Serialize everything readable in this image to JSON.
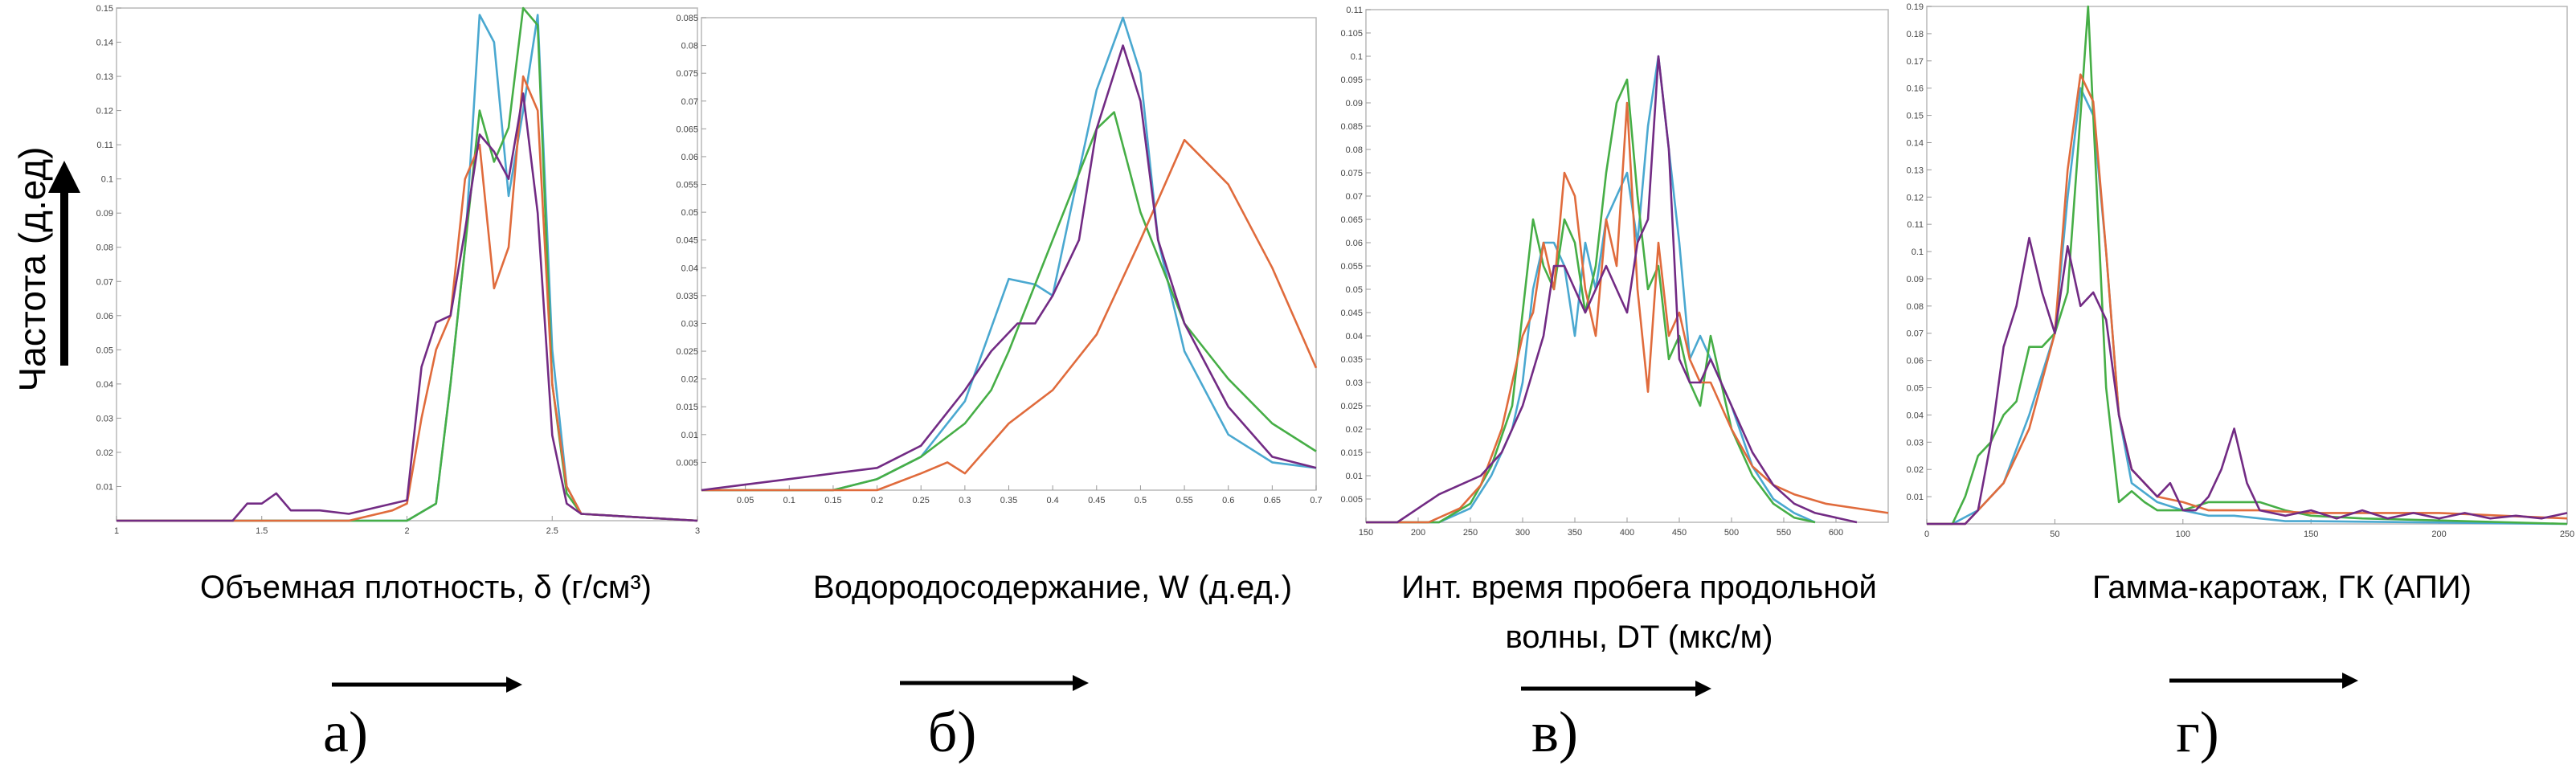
{
  "figure": {
    "ylabel": "Частота (д.ед)",
    "colors": {
      "Синяя": "#4aa8d0",
      "Зелёная": "#46ae46",
      "Красная": "#e06b3c",
      "Фиолетовая": "#722b84"
    }
  },
  "chart_data": [
    {
      "type": "line",
      "xlabel": "Объемная плотность, δ (г/см³)",
      "panel_label": "а)",
      "xlim": [
        1,
        3
      ],
      "ylim": [
        0,
        0.15
      ],
      "xticks": [
        "1",
        "1.5",
        "2",
        "2.5",
        "3"
      ],
      "xtick_values": [
        1,
        1.5,
        2,
        2.5,
        3
      ],
      "yticks": [
        "0.01",
        "0.02",
        "0.03",
        "0.04",
        "0.05",
        "0.06",
        "0.07",
        "0.08",
        "0.09",
        "0.1",
        "0.11",
        "0.12",
        "0.13",
        "0.14",
        "0.15"
      ],
      "ytick_values": [
        0.01,
        0.02,
        0.03,
        0.04,
        0.05,
        0.06,
        0.07,
        0.08,
        0.09,
        0.1,
        0.11,
        0.12,
        0.13,
        0.14,
        0.15
      ],
      "series": [
        {
          "color": "#4aa8d0",
          "x": [
            1,
            2,
            2.1,
            2.15,
            2.2,
            2.25,
            2.3,
            2.35,
            2.4,
            2.45,
            2.5,
            2.55,
            2.6,
            3
          ],
          "y": [
            0,
            0,
            0.005,
            0.04,
            0.08,
            0.148,
            0.14,
            0.095,
            0.12,
            0.148,
            0.05,
            0.01,
            0.002,
            0
          ]
        },
        {
          "color": "#46ae46",
          "x": [
            1,
            2,
            2.1,
            2.15,
            2.2,
            2.25,
            2.3,
            2.35,
            2.4,
            2.45,
            2.5,
            2.55,
            2.6,
            3
          ],
          "y": [
            0,
            0,
            0.005,
            0.04,
            0.08,
            0.12,
            0.105,
            0.115,
            0.15,
            0.145,
            0.04,
            0.008,
            0.002,
            0
          ]
        },
        {
          "color": "#e06b3c",
          "x": [
            1,
            1.8,
            1.95,
            2.0,
            2.05,
            2.1,
            2.15,
            2.2,
            2.25,
            2.3,
            2.35,
            2.4,
            2.45,
            2.5,
            2.55,
            2.6,
            3
          ],
          "y": [
            0,
            0,
            0.003,
            0.005,
            0.03,
            0.05,
            0.06,
            0.1,
            0.11,
            0.068,
            0.08,
            0.13,
            0.12,
            0.04,
            0.01,
            0.002,
            0
          ]
        },
        {
          "color": "#722b84",
          "x": [
            1,
            1.4,
            1.45,
            1.5,
            1.55,
            1.6,
            1.7,
            1.8,
            1.9,
            2.0,
            2.05,
            2.1,
            2.15,
            2.2,
            2.25,
            2.3,
            2.35,
            2.4,
            2.45,
            2.5,
            2.55,
            2.6,
            3
          ],
          "y": [
            0,
            0,
            0.005,
            0.005,
            0.008,
            0.003,
            0.003,
            0.002,
            0.004,
            0.006,
            0.045,
            0.058,
            0.06,
            0.085,
            0.113,
            0.108,
            0.1,
            0.125,
            0.09,
            0.025,
            0.005,
            0.002,
            0
          ]
        }
      ]
    },
    {
      "type": "line",
      "xlabel": "Водородосодержание, W (д.ед.)",
      "panel_label": "б)",
      "xlim": [
        0,
        0.7
      ],
      "ylim": [
        0,
        0.085
      ],
      "xticks": [
        "0.05",
        "0.1",
        "0.15",
        "0.2",
        "0.25",
        "0.3",
        "0.35",
        "0.4",
        "0.45",
        "0.5",
        "0.55",
        "0.6",
        "0.65",
        "0.7"
      ],
      "xtick_values": [
        0.05,
        0.1,
        0.15,
        0.2,
        0.25,
        0.3,
        0.35,
        0.4,
        0.45,
        0.5,
        0.55,
        0.6,
        0.65,
        0.7
      ],
      "yticks": [
        "0.005",
        "0.01",
        "0.015",
        "0.02",
        "0.025",
        "0.03",
        "0.035",
        "0.04",
        "0.045",
        "0.05",
        "0.055",
        "0.06",
        "0.065",
        "0.07",
        "0.075",
        "0.08",
        "0.085"
      ],
      "ytick_values": [
        0.005,
        0.01,
        0.015,
        0.02,
        0.025,
        0.03,
        0.035,
        0.04,
        0.045,
        0.05,
        0.055,
        0.06,
        0.065,
        0.07,
        0.075,
        0.08,
        0.085
      ],
      "series": [
        {
          "color": "#4aa8d0",
          "x": [
            0,
            0.15,
            0.2,
            0.25,
            0.3,
            0.35,
            0.38,
            0.4,
            0.42,
            0.45,
            0.48,
            0.5,
            0.52,
            0.55,
            0.6,
            0.65,
            0.7
          ],
          "y": [
            0,
            0,
            0.002,
            0.006,
            0.016,
            0.038,
            0.037,
            0.035,
            0.05,
            0.072,
            0.085,
            0.075,
            0.045,
            0.025,
            0.01,
            0.005,
            0.004
          ]
        },
        {
          "color": "#46ae46",
          "x": [
            0,
            0.15,
            0.2,
            0.25,
            0.3,
            0.33,
            0.35,
            0.4,
            0.45,
            0.47,
            0.5,
            0.55,
            0.6,
            0.65,
            0.7
          ],
          "y": [
            0,
            0,
            0.002,
            0.006,
            0.012,
            0.018,
            0.025,
            0.045,
            0.065,
            0.068,
            0.05,
            0.03,
            0.02,
            0.012,
            0.007
          ]
        },
        {
          "color": "#e06b3c",
          "x": [
            0,
            0.2,
            0.25,
            0.28,
            0.3,
            0.35,
            0.4,
            0.45,
            0.5,
            0.55,
            0.6,
            0.65,
            0.7
          ],
          "y": [
            0,
            0,
            0.003,
            0.005,
            0.003,
            0.012,
            0.018,
            0.028,
            0.045,
            0.063,
            0.055,
            0.04,
            0.022
          ]
        },
        {
          "color": "#722b84",
          "x": [
            0,
            0.05,
            0.1,
            0.15,
            0.2,
            0.25,
            0.3,
            0.33,
            0.36,
            0.38,
            0.4,
            0.43,
            0.45,
            0.48,
            0.5,
            0.52,
            0.55,
            0.6,
            0.65,
            0.7
          ],
          "y": [
            0,
            0.001,
            0.002,
            0.003,
            0.004,
            0.008,
            0.018,
            0.025,
            0.03,
            0.03,
            0.035,
            0.045,
            0.065,
            0.08,
            0.07,
            0.045,
            0.03,
            0.015,
            0.006,
            0.004
          ]
        }
      ]
    },
    {
      "type": "line",
      "xlabel": "Инт. время пробега продольной волны, DT (мкс/м)",
      "panel_label": "в)",
      "xlim": [
        150,
        650
      ],
      "ylim": [
        0,
        0.11
      ],
      "xticks": [
        "150",
        "200",
        "250",
        "300",
        "350",
        "400",
        "450",
        "500",
        "550",
        "600"
      ],
      "xtick_values": [
        150,
        200,
        250,
        300,
        350,
        400,
        450,
        500,
        550,
        600
      ],
      "yticks": [
        "0.005",
        "0.01",
        "0.015",
        "0.02",
        "0.025",
        "0.03",
        "0.035",
        "0.04",
        "0.045",
        "0.05",
        "0.055",
        "0.06",
        "0.065",
        "0.07",
        "0.075",
        "0.08",
        "0.085",
        "0.09",
        "0.095",
        "0.1",
        "0.105",
        "0.11"
      ],
      "ytick_values": [
        0.005,
        0.01,
        0.015,
        0.02,
        0.025,
        0.03,
        0.035,
        0.04,
        0.045,
        0.05,
        0.055,
        0.06,
        0.065,
        0.07,
        0.075,
        0.08,
        0.085,
        0.09,
        0.095,
        0.1,
        0.105,
        0.11
      ],
      "series": [
        {
          "color": "#4aa8d0",
          "x": [
            150,
            220,
            250,
            270,
            290,
            300,
            310,
            320,
            330,
            340,
            350,
            360,
            370,
            380,
            390,
            400,
            410,
            420,
            430,
            440,
            450,
            460,
            470,
            480,
            490,
            500,
            520,
            540,
            560,
            580
          ],
          "y": [
            0,
            0,
            0.003,
            0.01,
            0.02,
            0.03,
            0.05,
            0.06,
            0.06,
            0.055,
            0.04,
            0.06,
            0.05,
            0.065,
            0.07,
            0.075,
            0.06,
            0.085,
            0.1,
            0.08,
            0.06,
            0.035,
            0.04,
            0.035,
            0.03,
            0.025,
            0.012,
            0.005,
            0.002,
            0
          ]
        },
        {
          "color": "#46ae46",
          "x": [
            150,
            220,
            250,
            270,
            290,
            300,
            310,
            320,
            330,
            340,
            350,
            360,
            370,
            380,
            390,
            400,
            410,
            420,
            430,
            440,
            450,
            460,
            470,
            480,
            490,
            500,
            520,
            540,
            560,
            580
          ],
          "y": [
            0,
            0,
            0.004,
            0.012,
            0.025,
            0.045,
            0.065,
            0.055,
            0.05,
            0.065,
            0.06,
            0.045,
            0.055,
            0.075,
            0.09,
            0.095,
            0.07,
            0.05,
            0.055,
            0.035,
            0.04,
            0.03,
            0.025,
            0.04,
            0.03,
            0.02,
            0.01,
            0.004,
            0.001,
            0
          ]
        },
        {
          "color": "#e06b3c",
          "x": [
            150,
            210,
            240,
            260,
            280,
            300,
            310,
            320,
            330,
            340,
            350,
            360,
            370,
            380,
            390,
            400,
            410,
            420,
            430,
            440,
            450,
            460,
            470,
            480,
            490,
            500,
            520,
            540,
            560,
            590,
            620,
            650
          ],
          "y": [
            0,
            0,
            0.003,
            0.008,
            0.02,
            0.04,
            0.045,
            0.06,
            0.05,
            0.075,
            0.07,
            0.05,
            0.04,
            0.065,
            0.055,
            0.09,
            0.05,
            0.028,
            0.06,
            0.04,
            0.045,
            0.035,
            0.03,
            0.03,
            0.025,
            0.02,
            0.012,
            0.008,
            0.006,
            0.004,
            0.003,
            0.002
          ]
        },
        {
          "color": "#722b84",
          "x": [
            150,
            180,
            200,
            220,
            240,
            260,
            280,
            300,
            320,
            330,
            340,
            350,
            360,
            370,
            380,
            390,
            400,
            410,
            420,
            430,
            440,
            450,
            460,
            470,
            480,
            490,
            500,
            520,
            540,
            560,
            580,
            600,
            620
          ],
          "y": [
            0,
            0,
            0.003,
            0.006,
            0.008,
            0.01,
            0.015,
            0.025,
            0.04,
            0.055,
            0.055,
            0.05,
            0.045,
            0.05,
            0.055,
            0.05,
            0.045,
            0.06,
            0.065,
            0.1,
            0.08,
            0.035,
            0.03,
            0.03,
            0.035,
            0.03,
            0.025,
            0.015,
            0.008,
            0.004,
            0.002,
            0.001,
            0
          ]
        }
      ]
    },
    {
      "type": "line",
      "xlabel": "Гамма-каротаж, ГК (АПИ)",
      "panel_label": "г)",
      "xlim": [
        0,
        250
      ],
      "ylim": [
        0,
        0.19
      ],
      "xticks": [
        "0",
        "50",
        "100",
        "150",
        "200",
        "250"
      ],
      "xtick_values": [
        0,
        50,
        100,
        150,
        200,
        250
      ],
      "yticks": [
        "0.01",
        "0.02",
        "0.03",
        "0.04",
        "0.05",
        "0.06",
        "0.07",
        "0.08",
        "0.09",
        "0.1",
        "0.11",
        "0.12",
        "0.13",
        "0.14",
        "0.15",
        "0.16",
        "0.17",
        "0.18",
        "0.19"
      ],
      "ytick_values": [
        0.01,
        0.02,
        0.03,
        0.04,
        0.05,
        0.06,
        0.07,
        0.08,
        0.09,
        0.1,
        0.11,
        0.12,
        0.13,
        0.14,
        0.15,
        0.16,
        0.17,
        0.18,
        0.19
      ],
      "series": [
        {
          "color": "#4aa8d0",
          "x": [
            0,
            10,
            20,
            30,
            40,
            50,
            55,
            60,
            65,
            70,
            75,
            80,
            90,
            100,
            110,
            120,
            130,
            140,
            150,
            250
          ],
          "y": [
            0,
            0,
            0.005,
            0.015,
            0.04,
            0.07,
            0.12,
            0.16,
            0.15,
            0.1,
            0.04,
            0.015,
            0.008,
            0.005,
            0.003,
            0.003,
            0.002,
            0.001,
            0.001,
            0
          ]
        },
        {
          "color": "#46ae46",
          "x": [
            0,
            10,
            15,
            20,
            25,
            30,
            35,
            40,
            45,
            50,
            55,
            60,
            63,
            65,
            70,
            75,
            80,
            85,
            90,
            100,
            110,
            120,
            130,
            140,
            150,
            170,
            250
          ],
          "y": [
            0,
            0,
            0.01,
            0.025,
            0.03,
            0.04,
            0.045,
            0.065,
            0.065,
            0.07,
            0.085,
            0.15,
            0.19,
            0.15,
            0.05,
            0.008,
            0.012,
            0.008,
            0.005,
            0.005,
            0.008,
            0.008,
            0.008,
            0.005,
            0.003,
            0.002,
            0
          ]
        },
        {
          "color": "#e06b3c",
          "x": [
            0,
            15,
            20,
            30,
            40,
            50,
            55,
            60,
            65,
            70,
            75,
            80,
            90,
            100,
            110,
            120,
            130,
            150,
            170,
            200,
            250
          ],
          "y": [
            0,
            0,
            0.005,
            0.015,
            0.035,
            0.07,
            0.13,
            0.165,
            0.155,
            0.1,
            0.04,
            0.02,
            0.01,
            0.008,
            0.005,
            0.005,
            0.005,
            0.004,
            0.004,
            0.004,
            0.002
          ]
        },
        {
          "color": "#722b84",
          "x": [
            0,
            15,
            20,
            25,
            30,
            35,
            40,
            45,
            50,
            55,
            60,
            65,
            70,
            75,
            80,
            85,
            90,
            95,
            100,
            105,
            110,
            115,
            120,
            125,
            130,
            140,
            150,
            160,
            170,
            180,
            190,
            200,
            210,
            220,
            230,
            240,
            250
          ],
          "y": [
            0,
            0,
            0.005,
            0.03,
            0.065,
            0.08,
            0.105,
            0.085,
            0.07,
            0.102,
            0.08,
            0.085,
            0.075,
            0.04,
            0.02,
            0.015,
            0.01,
            0.015,
            0.005,
            0.005,
            0.01,
            0.02,
            0.035,
            0.015,
            0.005,
            0.003,
            0.005,
            0.002,
            0.005,
            0.002,
            0.004,
            0.002,
            0.004,
            0.002,
            0.003,
            0.002,
            0.004
          ]
        }
      ]
    }
  ]
}
